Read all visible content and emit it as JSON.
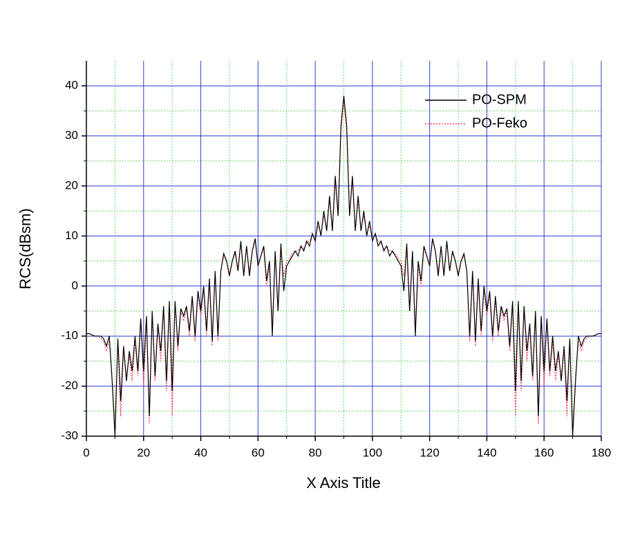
{
  "chart_data": {
    "type": "line",
    "xlabel": "X Axis Title",
    "ylabel": "RCS(dBsm)",
    "xlim": [
      0,
      180
    ],
    "ylim": [
      -30,
      45
    ],
    "xticks": [
      0,
      20,
      40,
      60,
      80,
      100,
      120,
      140,
      160,
      180
    ],
    "yticks": [
      -30,
      -20,
      -10,
      0,
      10,
      20,
      30,
      40
    ],
    "xminorticks": [
      10,
      30,
      50,
      70,
      90,
      110,
      130,
      150,
      170
    ],
    "yminorticks": [
      -25,
      -15,
      -5,
      5,
      15,
      25,
      35
    ],
    "grid": true,
    "major_grid_color": "#2a3fd0",
    "minor_grid_color": "#33cc33",
    "legend": "upper right",
    "x": [
      0,
      1,
      2,
      3,
      4,
      5,
      6,
      7,
      8,
      9,
      10,
      11,
      12,
      13,
      14,
      15,
      16,
      17,
      18,
      19,
      20,
      21,
      22,
      23,
      24,
      25,
      26,
      27,
      28,
      29,
      30,
      31,
      32,
      33,
      34,
      35,
      36,
      37,
      38,
      39,
      40,
      41,
      42,
      43,
      44,
      45,
      46,
      47,
      48,
      49,
      50,
      51,
      52,
      53,
      54,
      55,
      56,
      57,
      58,
      59,
      60,
      61,
      62,
      63,
      64,
      65,
      66,
      67,
      68,
      69,
      70,
      71,
      72,
      73,
      74,
      75,
      76,
      77,
      78,
      79,
      80,
      81,
      82,
      83,
      84,
      85,
      86,
      87,
      88,
      89,
      90,
      91,
      92,
      93,
      94,
      95,
      96,
      97,
      98,
      99,
      100,
      101,
      102,
      103,
      104,
      105,
      106,
      107,
      108,
      109,
      110,
      111,
      112,
      113,
      114,
      115,
      116,
      117,
      118,
      119,
      120,
      121,
      122,
      123,
      124,
      125,
      126,
      127,
      128,
      129,
      130,
      131,
      132,
      133,
      134,
      135,
      136,
      137,
      138,
      139,
      140,
      141,
      142,
      143,
      144,
      145,
      146,
      147,
      148,
      149,
      150,
      151,
      152,
      153,
      154,
      155,
      156,
      157,
      158,
      159,
      160,
      161,
      162,
      163,
      164,
      165,
      166,
      167,
      168,
      169,
      170,
      171,
      172,
      173,
      174,
      175,
      176,
      177,
      178,
      179,
      180
    ],
    "series": [
      {
        "name": "PO-SPM",
        "color": "#000000",
        "dash": "solid",
        "values": [
          -9.5,
          -9.5,
          -9.8,
          -10,
          -10,
          -10,
          -10.5,
          -12,
          -10,
          -19,
          -30,
          -10.5,
          -23,
          -12,
          -19,
          -13,
          -17,
          -10,
          -17,
          -6.5,
          -17,
          -6,
          -26,
          -5,
          -18,
          -7.5,
          -13,
          -4,
          -19,
          -3,
          -21,
          -3,
          -12,
          -4.5,
          -6,
          -4,
          -9,
          -2,
          -10,
          -1,
          -5,
          0,
          -9,
          1.5,
          -11,
          3,
          -10,
          3,
          6.5,
          5,
          2,
          5,
          7,
          3,
          9,
          2,
          8,
          2,
          7,
          9.5,
          4,
          6,
          8,
          1,
          5,
          -10,
          7,
          -5,
          8.5,
          -1,
          4,
          5,
          6,
          7,
          6,
          8,
          7,
          9,
          8,
          10.5,
          9,
          13,
          10,
          15,
          11,
          18,
          11,
          22,
          14,
          32,
          38,
          32,
          14,
          22,
          11,
          18,
          11,
          15,
          10,
          13,
          9,
          10.5,
          8,
          9,
          7,
          8,
          6,
          7,
          6,
          5,
          4,
          -1,
          8.5,
          -5,
          7,
          -10,
          5,
          1,
          8,
          6,
          4,
          9.5,
          7,
          2,
          8,
          2,
          9,
          3,
          7,
          5,
          2,
          5,
          6.5,
          3,
          -10,
          3,
          -11,
          1.5,
          -9,
          0,
          -5,
          -1,
          -10,
          -2,
          -9,
          -4,
          -6,
          -4.5,
          -12,
          -3,
          -21,
          -3,
          -19,
          -4,
          -13,
          -7.5,
          -18,
          -5,
          -26,
          -6,
          -17,
          -6.5,
          -17,
          -10,
          -17,
          -13,
          -19,
          -12,
          -23,
          -10.5,
          -30,
          -19,
          -10,
          -12,
          -10.5,
          -10,
          -10,
          -10,
          -9.8,
          -9.5,
          -9.5
        ]
      },
      {
        "name": "PO-Feko",
        "color": "#ff3b5c",
        "dash": "dotted",
        "values": [
          -9.5,
          -9.5,
          -9.8,
          -10,
          -10,
          -10.5,
          -11,
          -13,
          -11,
          -18,
          -29,
          -11,
          -26,
          -13,
          -18,
          -14,
          -19,
          -11,
          -18,
          -7,
          -20,
          -6.5,
          -27.5,
          -5.5,
          -19,
          -8,
          -15,
          -4.5,
          -21,
          -3.5,
          -26,
          -3.5,
          -13,
          -5,
          -7,
          -4.5,
          -10,
          -2.5,
          -11,
          -1.5,
          -6,
          -0.5,
          -10,
          1,
          -12,
          2.5,
          -11,
          3,
          6,
          5,
          2.5,
          5,
          6.5,
          3.5,
          8.5,
          2.5,
          7.5,
          3,
          7,
          9,
          4.5,
          6,
          7.5,
          0,
          4,
          -8,
          6,
          -5,
          7,
          2,
          5,
          5.5,
          6.5,
          7,
          7,
          8,
          7.5,
          8.5,
          9,
          10,
          10,
          12,
          10.5,
          14,
          11.5,
          17,
          11.5,
          21,
          14,
          31,
          37,
          31,
          14,
          21,
          11.5,
          17,
          11.5,
          14,
          10.5,
          12,
          10,
          10,
          9,
          8.5,
          7.5,
          8,
          7,
          7,
          6.5,
          5.5,
          5,
          2,
          7,
          -5,
          6,
          -8,
          4,
          0,
          7.5,
          6,
          4.5,
          9,
          7,
          3,
          7.5,
          2.5,
          8.5,
          3.5,
          6.5,
          5,
          2.5,
          5,
          6,
          3,
          -11,
          2.5,
          -12,
          1,
          -10,
          -0.5,
          -6,
          -1.5,
          -11,
          -2.5,
          -10,
          -4.5,
          -7,
          -5,
          -13,
          -3.5,
          -26,
          -3.5,
          -21,
          -4.5,
          -15,
          -8,
          -19,
          -5.5,
          -27.5,
          -6.5,
          -20,
          -7,
          -18,
          -11,
          -19,
          -14,
          -18,
          -13,
          -26,
          -11,
          -29,
          -18,
          -11,
          -13,
          -11,
          -10.5,
          -10,
          -10,
          -9.8,
          -9.5,
          -9.5
        ]
      }
    ]
  }
}
